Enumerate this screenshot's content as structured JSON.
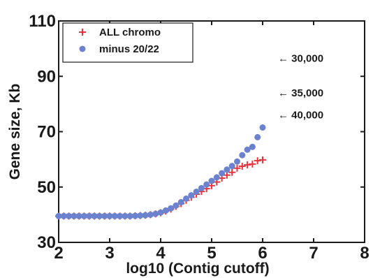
{
  "chart_data": {
    "type": "scatter",
    "xlabel": "log10 (Contig cutoff)",
    "ylabel": "Gene size, Kb",
    "xlim": [
      2,
      8
    ],
    "ylim": [
      30,
      110
    ],
    "xticks": [
      "2",
      "3",
      "4",
      "5",
      "6",
      "7",
      "8"
    ],
    "yticks": [
      "30",
      "50",
      "70",
      "90",
      "110"
    ],
    "legend_position": "top-left",
    "grid": false,
    "series": [
      {
        "name": "ALL chromo",
        "marker": "plus",
        "color": "#e8353c",
        "x": [
          2.0,
          2.1,
          2.2,
          2.3,
          2.4,
          2.5,
          2.6,
          2.7,
          2.8,
          2.9,
          3.0,
          3.1,
          3.2,
          3.3,
          3.4,
          3.5,
          3.6,
          3.7,
          3.8,
          3.9,
          4.0,
          4.1,
          4.2,
          4.3,
          4.4,
          4.5,
          4.6,
          4.7,
          4.8,
          4.9,
          5.0,
          5.1,
          5.2,
          5.3,
          5.4,
          5.5,
          5.6,
          5.7,
          5.8,
          5.9,
          6.0
        ],
        "y": [
          39.5,
          39.5,
          39.5,
          39.5,
          39.5,
          39.5,
          39.5,
          39.5,
          39.5,
          39.5,
          39.5,
          39.5,
          39.5,
          39.5,
          39.5,
          39.6,
          39.7,
          39.8,
          40.0,
          40.3,
          40.7,
          41.3,
          42.0,
          43.0,
          44.0,
          45.2,
          46.3,
          47.4,
          48.4,
          49.4,
          50.5,
          51.8,
          53.2,
          54.3,
          55.3,
          56.8,
          57.5,
          58.0,
          58.3,
          59.5,
          59.8
        ]
      },
      {
        "name": "minus 20/22",
        "marker": "circle",
        "color": "#6d82cf",
        "x": [
          2.0,
          2.1,
          2.2,
          2.3,
          2.4,
          2.5,
          2.6,
          2.7,
          2.8,
          2.9,
          3.0,
          3.1,
          3.2,
          3.3,
          3.4,
          3.5,
          3.6,
          3.7,
          3.8,
          3.9,
          4.0,
          4.1,
          4.2,
          4.3,
          4.4,
          4.5,
          4.6,
          4.7,
          4.8,
          4.9,
          5.0,
          5.1,
          5.2,
          5.3,
          5.4,
          5.5,
          5.6,
          5.7,
          5.8,
          5.9,
          6.0
        ],
        "y": [
          39.5,
          39.5,
          39.5,
          39.5,
          39.5,
          39.5,
          39.5,
          39.5,
          39.5,
          39.5,
          39.5,
          39.5,
          39.5,
          39.5,
          39.5,
          39.6,
          39.7,
          39.8,
          40.0,
          40.3,
          40.8,
          41.5,
          42.3,
          43.3,
          44.5,
          45.8,
          47.0,
          48.3,
          49.6,
          50.9,
          52.2,
          53.5,
          55.0,
          56.3,
          57.6,
          59.2,
          61.5,
          63.5,
          64.5,
          68.0,
          71.5
        ]
      }
    ],
    "annotations": [
      {
        "text": "← 30,000",
        "y": 96.5
      },
      {
        "text": "← 35,000",
        "y": 84
      },
      {
        "text": "← 40,000",
        "y": 76
      }
    ]
  }
}
